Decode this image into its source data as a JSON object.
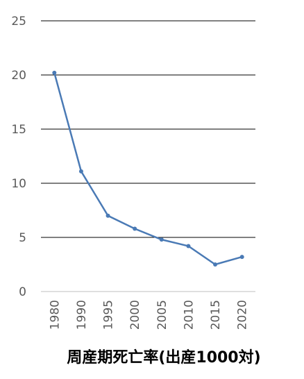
{
  "chart_data": {
    "type": "line",
    "title": "周産期死亡率(出産1000対)",
    "categories": [
      "1980",
      "1990",
      "1995",
      "2000",
      "2005",
      "2010",
      "2015",
      "2020"
    ],
    "series": [
      {
        "name": "周産期死亡率",
        "color": "#4a7ab5",
        "values": [
          20.2,
          11.1,
          7.0,
          5.8,
          4.8,
          4.2,
          2.5,
          3.2
        ]
      }
    ],
    "ylim": [
      0,
      25
    ],
    "yticks": [
      0,
      5,
      10,
      15,
      20,
      25
    ],
    "grid": true
  }
}
